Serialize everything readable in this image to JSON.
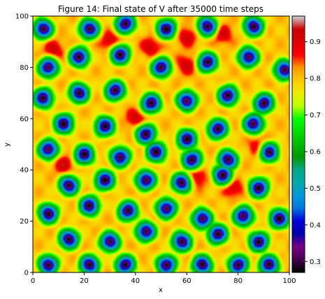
{
  "chart_data": {
    "type": "heatmap",
    "title": "Figure 14: Final state of V after 35000 time steps",
    "xlabel": "x",
    "ylabel": "y",
    "xlim": [
      0,
      100
    ],
    "ylim": [
      0,
      100
    ],
    "x_ticks": [
      0,
      20,
      40,
      60,
      80,
      100
    ],
    "y_ticks": [
      0,
      20,
      40,
      60,
      80,
      100
    ],
    "colorbar": {
      "range": [
        0.27,
        0.97
      ],
      "ticks": [
        0.3,
        0.4,
        0.5,
        0.6,
        0.7,
        0.8,
        0.9
      ],
      "colormap": "nipy_spectral"
    },
    "background_level": 0.8,
    "spots": [
      [
        6,
        3
      ],
      [
        22,
        3
      ],
      [
        36,
        3
      ],
      [
        52,
        3
      ],
      [
        66,
        3
      ],
      [
        80,
        3
      ],
      [
        92,
        3
      ],
      [
        14,
        13
      ],
      [
        30,
        12
      ],
      [
        44,
        16
      ],
      [
        58,
        12
      ],
      [
        72,
        15
      ],
      [
        88,
        12
      ],
      [
        6,
        23
      ],
      [
        22,
        26
      ],
      [
        37,
        24
      ],
      [
        52,
        25
      ],
      [
        66,
        21
      ],
      [
        82,
        22
      ],
      [
        96,
        21
      ],
      [
        14,
        34
      ],
      [
        28,
        36
      ],
      [
        44,
        36
      ],
      [
        58,
        35
      ],
      [
        74,
        38
      ],
      [
        88,
        33
      ],
      [
        6,
        48
      ],
      [
        20,
        46
      ],
      [
        34,
        45
      ],
      [
        48,
        47
      ],
      [
        62,
        44
      ],
      [
        76,
        44
      ],
      [
        92,
        47
      ],
      [
        12,
        58
      ],
      [
        28,
        57
      ],
      [
        44,
        54
      ],
      [
        60,
        52
      ],
      [
        72,
        56
      ],
      [
        86,
        58
      ],
      [
        4,
        68
      ],
      [
        18,
        70
      ],
      [
        32,
        71
      ],
      [
        46,
        66
      ],
      [
        60,
        67
      ],
      [
        76,
        69
      ],
      [
        90,
        66
      ],
      [
        6,
        80
      ],
      [
        18,
        84
      ],
      [
        34,
        85
      ],
      [
        50,
        80
      ],
      [
        68,
        82
      ],
      [
        84,
        84
      ],
      [
        98,
        79
      ],
      [
        4,
        95
      ],
      [
        22,
        95
      ],
      [
        36,
        97
      ],
      [
        52,
        95
      ],
      [
        68,
        96
      ],
      [
        86,
        96
      ]
    ],
    "hot_patches": [
      [
        12,
        42
      ],
      [
        64,
        37
      ],
      [
        78,
        33
      ],
      [
        88,
        49
      ],
      [
        40,
        60
      ],
      [
        30,
        90
      ],
      [
        60,
        92
      ],
      [
        74,
        93
      ],
      [
        46,
        88
      ],
      [
        8,
        87
      ],
      [
        60,
        81
      ]
    ]
  }
}
